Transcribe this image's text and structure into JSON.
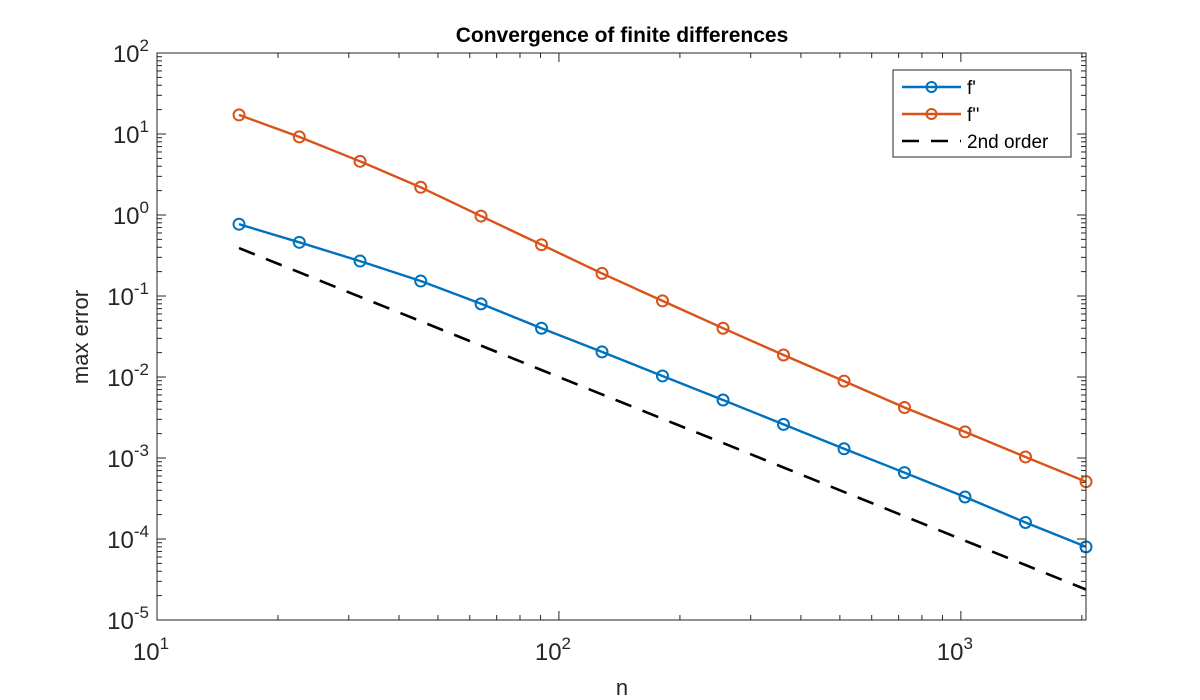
{
  "chart_data": {
    "type": "line",
    "title": "Convergence of finite differences",
    "xlabel": "n",
    "ylabel": "max error",
    "xscale": "log",
    "yscale": "log",
    "xlim": [
      10,
      2048
    ],
    "ylim": [
      1e-05,
      100
    ],
    "grid": false,
    "legend_placement": "top-right",
    "x_ticks": [
      {
        "base": "10",
        "exp": "1",
        "value": 10
      },
      {
        "base": "10",
        "exp": "2",
        "value": 100
      },
      {
        "base": "10",
        "exp": "3",
        "value": 1000
      }
    ],
    "y_ticks": [
      {
        "base": "10",
        "exp": "-5",
        "value": 1e-05
      },
      {
        "base": "10",
        "exp": "-4",
        "value": 0.0001
      },
      {
        "base": "10",
        "exp": "-3",
        "value": 0.001
      },
      {
        "base": "10",
        "exp": "-2",
        "value": 0.01
      },
      {
        "base": "10",
        "exp": "-1",
        "value": 0.1
      },
      {
        "base": "10",
        "exp": "0",
        "value": 1
      },
      {
        "base": "10",
        "exp": "1",
        "value": 10
      },
      {
        "base": "10",
        "exp": "2",
        "value": 100
      }
    ],
    "x": [
      16,
      22.6,
      32,
      45.3,
      64,
      90.5,
      128,
      181,
      256,
      362,
      512,
      724,
      1024,
      1448,
      2048
    ],
    "series": [
      {
        "name": "f'",
        "color": "#0072BD",
        "style": "solid",
        "marker": "circle",
        "values": [
          0.77,
          0.46,
          0.27,
          0.153,
          0.08,
          0.04,
          0.0204,
          0.0103,
          0.0052,
          0.0026,
          0.0013,
          0.00066,
          0.00033,
          0.00016,
          8e-05
        ]
      },
      {
        "name": "f''",
        "color": "#D95319",
        "style": "solid",
        "marker": "circle",
        "values": [
          17.2,
          9.2,
          4.6,
          2.2,
          0.97,
          0.43,
          0.19,
          0.087,
          0.04,
          0.0187,
          0.0089,
          0.0042,
          0.0021,
          0.00103,
          0.00051
        ]
      },
      {
        "name": "2nd order",
        "color": "#000000",
        "style": "dashed",
        "marker": "none",
        "values": [
          0.39,
          0.196,
          0.0977,
          0.0488,
          0.0244,
          0.0122,
          0.0061,
          0.00305,
          0.00153,
          0.000763,
          0.000381,
          0.000191,
          9.54e-05,
          4.77e-05,
          2.38e-05
        ]
      }
    ]
  }
}
